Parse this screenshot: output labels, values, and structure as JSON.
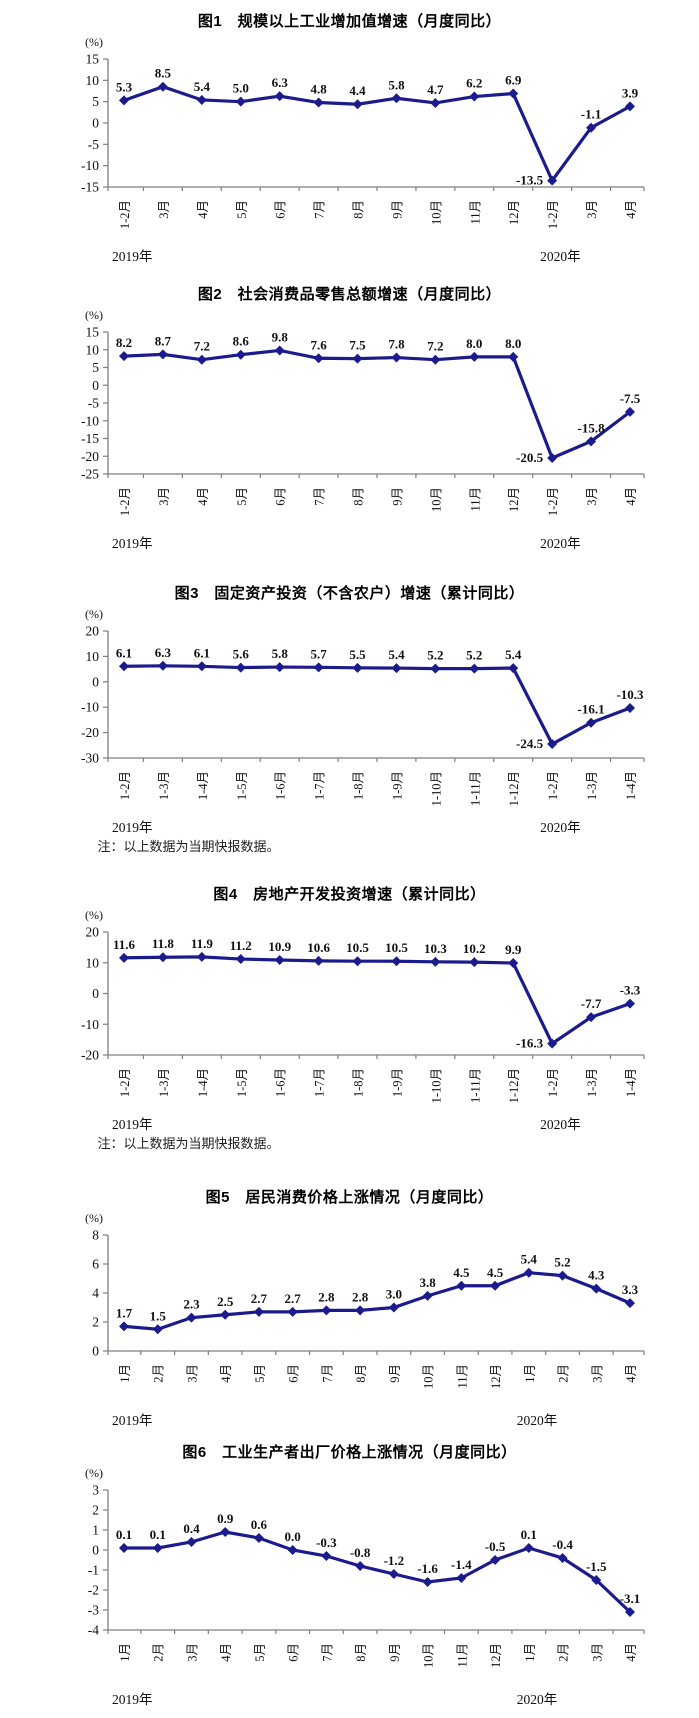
{
  "colors": {
    "line": "#1B1B8E",
    "axis": "#7f7f7f",
    "label_text": "#111111"
  },
  "chart_data": [
    {
      "type": "line",
      "title": "图1　规模以上工业增加值增速（月度同比）",
      "unit": "(%)",
      "categories": [
        "1-2月",
        "3月",
        "4月",
        "5月",
        "6月",
        "7月",
        "8月",
        "9月",
        "10月",
        "11月",
        "12月",
        "1-2月",
        "3月",
        "4月"
      ],
      "values": [
        5.3,
        8.5,
        5.4,
        5.0,
        6.3,
        4.8,
        4.4,
        5.8,
        4.7,
        6.2,
        6.9,
        -13.5,
        -1.1,
        3.9
      ],
      "labels": [
        "5.3",
        "8.5",
        "5.4",
        "5.0",
        "6.3",
        "4.8",
        "4.4",
        "5.8",
        "4.7",
        "6.2",
        "6.9",
        "-13.5",
        "-1.1",
        "3.9"
      ],
      "ylim": [
        -15,
        15
      ],
      "yticks": [
        15,
        10,
        5,
        0,
        -5,
        -10,
        -15
      ],
      "year_labels": [
        {
          "label": "2019年",
          "index": 0
        },
        {
          "label": "2020年",
          "index": 11
        }
      ],
      "note": null
    },
    {
      "type": "line",
      "title": "图2　社会消费品零售总额增速（月度同比）",
      "unit": "(%)",
      "categories": [
        "1-2月",
        "3月",
        "4月",
        "5月",
        "6月",
        "7月",
        "8月",
        "9月",
        "10月",
        "11月",
        "12月",
        "1-2月",
        "3月",
        "4月"
      ],
      "values": [
        8.2,
        8.7,
        7.2,
        8.6,
        9.8,
        7.6,
        7.5,
        7.8,
        7.2,
        8.0,
        8.0,
        -20.5,
        -15.8,
        -7.5
      ],
      "labels": [
        "8.2",
        "8.7",
        "7.2",
        "8.6",
        "9.8",
        "7.6",
        "7.5",
        "7.8",
        "7.2",
        "8.0",
        "8.0",
        "-20.5",
        "-15.8",
        "-7.5"
      ],
      "ylim": [
        -25,
        15
      ],
      "yticks": [
        15,
        10,
        5,
        0,
        -5,
        -10,
        -15,
        -20,
        -25
      ],
      "year_labels": [
        {
          "label": "2019年",
          "index": 0
        },
        {
          "label": "2020年",
          "index": 11
        }
      ],
      "note": null
    },
    {
      "type": "line",
      "title": "图3　固定资产投资（不含农户）增速（累计同比）",
      "unit": "(%)",
      "categories": [
        "1-2月",
        "1-3月",
        "1-4月",
        "1-5月",
        "1-6月",
        "1-7月",
        "1-8月",
        "1-9月",
        "1-10月",
        "1-11月",
        "1-12月",
        "1-2月",
        "1-3月",
        "1-4月"
      ],
      "values": [
        6.1,
        6.3,
        6.1,
        5.6,
        5.8,
        5.7,
        5.5,
        5.4,
        5.2,
        5.2,
        5.4,
        -24.5,
        -16.1,
        -10.3
      ],
      "labels": [
        "6.1",
        "6.3",
        "6.1",
        "5.6",
        "5.8",
        "5.7",
        "5.5",
        "5.4",
        "5.2",
        "5.2",
        "5.4",
        "-24.5",
        "-16.1",
        "-10.3"
      ],
      "ylim": [
        -30,
        20
      ],
      "yticks": [
        20,
        10,
        0,
        -10,
        -20,
        -30
      ],
      "year_labels": [
        {
          "label": "2019年",
          "index": 0
        },
        {
          "label": "2020年",
          "index": 11
        }
      ],
      "note": "注：以上数据为当期快报数据。"
    },
    {
      "type": "line",
      "title": "图4　房地产开发投资增速（累计同比）",
      "unit": "(%)",
      "categories": [
        "1-2月",
        "1-3月",
        "1-4月",
        "1-5月",
        "1-6月",
        "1-7月",
        "1-8月",
        "1-9月",
        "1-10月",
        "1-11月",
        "1-12月",
        "1-2月",
        "1-3月",
        "1-4月"
      ],
      "values": [
        11.6,
        11.8,
        11.9,
        11.2,
        10.9,
        10.6,
        10.5,
        10.5,
        10.3,
        10.2,
        9.9,
        -16.3,
        -7.7,
        -3.3
      ],
      "labels": [
        "11.6",
        "11.8",
        "11.9",
        "11.2",
        "10.9",
        "10.6",
        "10.5",
        "10.5",
        "10.3",
        "10.2",
        "9.9",
        "-16.3",
        "-7.7",
        "-3.3"
      ],
      "ylim": [
        -20,
        20
      ],
      "yticks": [
        20,
        10,
        0,
        -10,
        -20
      ],
      "year_labels": [
        {
          "label": "2019年",
          "index": 0
        },
        {
          "label": "2020年",
          "index": 11
        }
      ],
      "note": "注：以上数据为当期快报数据。"
    },
    {
      "type": "line",
      "title": "图5　居民消费价格上涨情况（月度同比）",
      "unit": "(%)",
      "categories": [
        "1月",
        "2月",
        "3月",
        "4月",
        "5月",
        "6月",
        "7月",
        "8月",
        "9月",
        "10月",
        "11月",
        "12月",
        "1月",
        "2月",
        "3月",
        "4月"
      ],
      "values": [
        1.7,
        1.5,
        2.3,
        2.5,
        2.7,
        2.7,
        2.8,
        2.8,
        3.0,
        3.8,
        4.5,
        4.5,
        5.4,
        5.2,
        4.3,
        3.3
      ],
      "labels": [
        "1.7",
        "1.5",
        "2.3",
        "2.5",
        "2.7",
        "2.7",
        "2.8",
        "2.8",
        "3.0",
        "3.8",
        "4.5",
        "4.5",
        "5.4",
        "5.2",
        "4.3",
        "3.3"
      ],
      "ylim": [
        0,
        8
      ],
      "yticks": [
        8,
        6,
        4,
        2,
        0
      ],
      "year_labels": [
        {
          "label": "2019年",
          "index": 0
        },
        {
          "label": "2020年",
          "index": 12
        }
      ],
      "note": null
    },
    {
      "type": "line",
      "title": "图6　工业生产者出厂价格上涨情况（月度同比）",
      "unit": "(%)",
      "categories": [
        "1月",
        "2月",
        "3月",
        "4月",
        "5月",
        "6月",
        "7月",
        "8月",
        "9月",
        "10月",
        "11月",
        "12月",
        "1月",
        "2月",
        "3月",
        "4月"
      ],
      "values": [
        0.1,
        0.1,
        0.4,
        0.9,
        0.6,
        0.0,
        -0.3,
        -0.8,
        -1.2,
        -1.6,
        -1.4,
        -0.5,
        0.1,
        -0.4,
        -1.5,
        -3.1
      ],
      "labels": [
        "0.1",
        "0.1",
        "0.4",
        "0.9",
        "0.6",
        "0.0",
        "-0.3",
        "-0.8",
        "-1.2",
        "-1.6",
        "-1.4",
        "-0.5",
        "0.1",
        "-0.4",
        "-1.5",
        "-3.1"
      ],
      "ylim": [
        -4,
        3
      ],
      "yticks": [
        3,
        2,
        1,
        0,
        -1,
        -2,
        -3,
        -4
      ],
      "year_labels": [
        {
          "label": "2019年",
          "index": 0
        },
        {
          "label": "2020年",
          "index": 12
        }
      ],
      "note": null
    }
  ]
}
